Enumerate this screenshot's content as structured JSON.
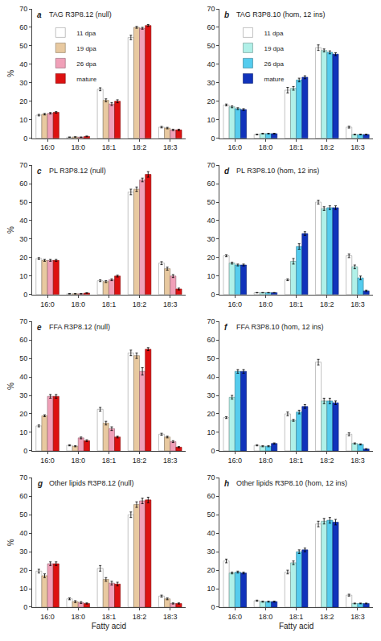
{
  "chart_data": [
    {
      "type": "bar",
      "title": "TAG R3P8.12 (null)",
      "annotations": [
        "a"
      ],
      "categories": [
        "16:0",
        "18:0",
        "18:1",
        "18:2",
        "18:3"
      ],
      "series": [
        {
          "name": "11 dpa",
          "color": "#ffffff",
          "values": [
            12.5,
            0.6,
            26.5,
            54.5,
            6.0
          ],
          "errors": [
            0.4,
            0.1,
            0.8,
            1.2,
            0.4
          ]
        },
        {
          "name": "19 dpa",
          "color": "#e8c9a0",
          "values": [
            13.0,
            0.7,
            20.5,
            60.0,
            5.5
          ],
          "errors": [
            0.4,
            0.1,
            0.8,
            0.5,
            0.4
          ]
        },
        {
          "name": "26 dpa",
          "color": "#f0a0b8",
          "values": [
            13.5,
            0.6,
            18.5,
            59.5,
            4.5
          ],
          "errors": [
            0.4,
            0.1,
            0.8,
            0.5,
            0.4
          ]
        },
        {
          "name": "mature",
          "color": "#dd1111",
          "values": [
            14.0,
            1.0,
            20.0,
            61.0,
            4.5
          ],
          "errors": [
            0.4,
            0.2,
            0.8,
            0.5,
            0.4
          ]
        }
      ],
      "ylim": [
        0,
        70
      ],
      "yticks": [
        0,
        10,
        20,
        30,
        40,
        50,
        60,
        70
      ],
      "ylabel": "%",
      "grid": false,
      "legend": "upper left"
    },
    {
      "type": "bar",
      "title": "TAG R3P8.10 (hom, 12 ins)",
      "annotations": [
        "b"
      ],
      "categories": [
        "16:0",
        "18:0",
        "18:1",
        "18:2",
        "18:3"
      ],
      "series": [
        {
          "name": "11 dpa",
          "color": "#ffffff",
          "values": [
            18.0,
            2.0,
            26.0,
            49.0,
            6.0
          ],
          "errors": [
            0.5,
            0.2,
            1.5,
            1.5,
            0.5
          ]
        },
        {
          "name": "19 dpa",
          "color": "#b0f0e8",
          "values": [
            17.0,
            2.5,
            27.0,
            47.5,
            2.0
          ],
          "errors": [
            0.5,
            0.2,
            1.0,
            0.8,
            0.2
          ]
        },
        {
          "name": "26 dpa",
          "color": "#55ccee",
          "values": [
            16.0,
            2.5,
            31.5,
            46.5,
            2.0
          ],
          "errors": [
            0.5,
            0.2,
            1.0,
            0.8,
            0.2
          ]
        },
        {
          "name": "mature",
          "color": "#1133bb",
          "values": [
            15.5,
            2.5,
            33.0,
            45.5,
            2.0
          ],
          "errors": [
            0.5,
            0.2,
            0.8,
            0.8,
            0.2
          ]
        }
      ],
      "ylim": [
        0,
        70
      ],
      "yticks": [
        0,
        10,
        20,
        30,
        40,
        50,
        60,
        70
      ],
      "grid": false,
      "legend": "upper left"
    },
    {
      "type": "bar",
      "title": "PL R3P8.12 (null)",
      "annotations": [
        "c"
      ],
      "categories": [
        "16:0",
        "18:0",
        "18:1",
        "18:2",
        "18:3"
      ],
      "series": [
        {
          "color": "#ffffff",
          "values": [
            19.5,
            0.4,
            7.5,
            55.5,
            17.0
          ],
          "errors": [
            0.5,
            0.1,
            0.5,
            1.5,
            0.8
          ]
        },
        {
          "color": "#e8c9a0",
          "values": [
            18.5,
            0.4,
            7.0,
            57.0,
            14.0
          ],
          "errors": [
            0.5,
            0.1,
            0.5,
            1.2,
            0.8
          ]
        },
        {
          "color": "#f0a0b8",
          "values": [
            18.5,
            0.4,
            8.0,
            62.0,
            10.0
          ],
          "errors": [
            0.5,
            0.1,
            0.5,
            1.0,
            0.8
          ]
        },
        {
          "color": "#dd1111",
          "values": [
            18.5,
            0.8,
            10.0,
            65.0,
            3.0
          ],
          "errors": [
            0.5,
            0.15,
            0.5,
            1.5,
            0.5
          ]
        }
      ],
      "ylim": [
        0,
        70
      ],
      "yticks": [
        0,
        10,
        20,
        30,
        40,
        50,
        60,
        70
      ],
      "ylabel": "%",
      "grid": false
    },
    {
      "type": "bar",
      "title": "PL R3P8.10 (hom, 12 ins)",
      "annotations": [
        "d"
      ],
      "categories": [
        "16:0",
        "18:0",
        "18:1",
        "18:2",
        "18:3"
      ],
      "series": [
        {
          "color": "#ffffff",
          "values": [
            21.0,
            1.0,
            8.0,
            50.0,
            21.0
          ],
          "errors": [
            0.5,
            0.1,
            0.5,
            1.0,
            1.0
          ]
        },
        {
          "color": "#b0f0e8",
          "values": [
            17.0,
            1.0,
            18.0,
            46.5,
            15.0
          ],
          "errors": [
            0.5,
            0.1,
            1.5,
            1.0,
            1.0
          ]
        },
        {
          "color": "#55ccee",
          "values": [
            16.0,
            1.0,
            26.0,
            47.0,
            9.0
          ],
          "errors": [
            0.5,
            0.1,
            1.5,
            1.0,
            1.0
          ]
        },
        {
          "color": "#1133bb",
          "values": [
            16.0,
            1.0,
            33.0,
            47.0,
            2.0
          ],
          "errors": [
            0.5,
            0.1,
            1.0,
            1.0,
            0.4
          ]
        }
      ],
      "ylim": [
        0,
        70
      ],
      "yticks": [
        0,
        10,
        20,
        30,
        40,
        50,
        60,
        70
      ],
      "grid": false
    },
    {
      "type": "bar",
      "title": "FFA R3P8.12 (null)",
      "annotations": [
        "e"
      ],
      "categories": [
        "16:0",
        "18:0",
        "18:1",
        "18:2",
        "18:3"
      ],
      "series": [
        {
          "color": "#ffffff",
          "values": [
            13.5,
            3.0,
            22.5,
            53.0,
            9.0
          ],
          "errors": [
            0.5,
            0.3,
            1.0,
            1.5,
            0.5
          ]
        },
        {
          "color": "#e8c9a0",
          "values": [
            19.0,
            2.5,
            15.0,
            51.5,
            7.5
          ],
          "errors": [
            0.5,
            0.3,
            1.0,
            1.5,
            0.5
          ]
        },
        {
          "color": "#f0a0b8",
          "values": [
            29.5,
            7.0,
            12.0,
            43.0,
            5.0
          ],
          "errors": [
            1.0,
            0.5,
            1.0,
            2.0,
            0.5
          ]
        },
        {
          "color": "#dd1111",
          "values": [
            29.5,
            5.5,
            7.5,
            55.0,
            2.0
          ],
          "errors": [
            1.0,
            0.5,
            0.5,
            0.8,
            0.3
          ]
        }
      ],
      "ylim": [
        0,
        70
      ],
      "yticks": [
        0,
        10,
        20,
        30,
        40,
        50,
        60,
        70
      ],
      "ylabel": "%",
      "grid": false
    },
    {
      "type": "bar",
      "title": "FFA R3P8.10 (hom, 12 ins)",
      "annotations": [
        "f"
      ],
      "categories": [
        "16:0",
        "18:0",
        "18:1",
        "18:2",
        "18:3"
      ],
      "series": [
        {
          "color": "#ffffff",
          "values": [
            18.0,
            3.0,
            20.0,
            48.0,
            9.0
          ],
          "errors": [
            0.5,
            0.3,
            1.0,
            1.5,
            0.8
          ]
        },
        {
          "color": "#b0f0e8",
          "values": [
            29.0,
            2.5,
            16.5,
            27.0,
            4.0
          ],
          "errors": [
            1.0,
            0.3,
            0.5,
            1.5,
            0.3
          ]
        },
        {
          "color": "#55ccee",
          "values": [
            43.0,
            2.5,
            21.0,
            27.0,
            3.5
          ],
          "errors": [
            1.0,
            0.3,
            1.0,
            1.5,
            0.3
          ]
        },
        {
          "color": "#1133bb",
          "values": [
            43.0,
            4.0,
            24.0,
            26.0,
            1.0
          ],
          "errors": [
            1.0,
            0.3,
            1.0,
            1.0,
            0.2
          ]
        }
      ],
      "ylim": [
        0,
        70
      ],
      "yticks": [
        0,
        10,
        20,
        30,
        40,
        50,
        60,
        70
      ],
      "grid": false
    },
    {
      "type": "bar",
      "title": "Other lipids R3P8.12 (null)",
      "annotations": [
        "g"
      ],
      "categories": [
        "16:0",
        "18:0",
        "18:1",
        "18:2",
        "18:3"
      ],
      "series": [
        {
          "color": "#ffffff",
          "values": [
            19.5,
            4.5,
            21.0,
            50.0,
            6.0
          ],
          "errors": [
            1.0,
            0.5,
            1.5,
            1.5,
            0.5
          ]
        },
        {
          "color": "#e8c9a0",
          "values": [
            17.0,
            3.0,
            15.0,
            55.5,
            4.5
          ],
          "errors": [
            1.0,
            0.5,
            1.0,
            1.5,
            0.5
          ]
        },
        {
          "color": "#f0a0b8",
          "values": [
            23.5,
            2.5,
            13.0,
            57.5,
            2.0
          ],
          "errors": [
            1.0,
            0.5,
            1.0,
            1.5,
            0.3
          ]
        },
        {
          "color": "#dd1111",
          "values": [
            23.5,
            2.0,
            12.5,
            58.0,
            2.0
          ],
          "errors": [
            1.0,
            0.3,
            1.0,
            1.5,
            0.3
          ]
        }
      ],
      "ylim": [
        0,
        70
      ],
      "yticks": [
        0,
        10,
        20,
        30,
        40,
        50,
        60,
        70
      ],
      "ylabel": "%",
      "xlabel": "Fatty acid",
      "grid": false
    },
    {
      "type": "bar",
      "title": "Other lipids R3P8.10 (hom, 12 ins)",
      "annotations": [
        "h"
      ],
      "categories": [
        "16:0",
        "18:0",
        "18:1",
        "18:2",
        "18:3"
      ],
      "series": [
        {
          "color": "#ffffff",
          "values": [
            25.0,
            3.5,
            19.0,
            45.0,
            6.5
          ],
          "errors": [
            1.0,
            0.3,
            1.0,
            1.5,
            0.5
          ]
        },
        {
          "color": "#b0f0e8",
          "values": [
            18.5,
            3.0,
            24.0,
            46.5,
            2.0
          ],
          "errors": [
            0.5,
            0.3,
            1.0,
            1.5,
            0.2
          ]
        },
        {
          "color": "#55ccee",
          "values": [
            19.0,
            3.0,
            30.0,
            47.0,
            2.0
          ],
          "errors": [
            0.5,
            0.3,
            1.0,
            1.5,
            0.2
          ]
        },
        {
          "color": "#1133bb",
          "values": [
            18.5,
            3.0,
            31.0,
            46.0,
            2.0
          ],
          "errors": [
            0.5,
            0.3,
            1.0,
            1.5,
            0.2
          ]
        }
      ],
      "ylim": [
        0,
        70
      ],
      "yticks": [
        0,
        10,
        20,
        30,
        40,
        50,
        60,
        70
      ],
      "xlabel": "Fatty acid",
      "grid": false
    }
  ]
}
